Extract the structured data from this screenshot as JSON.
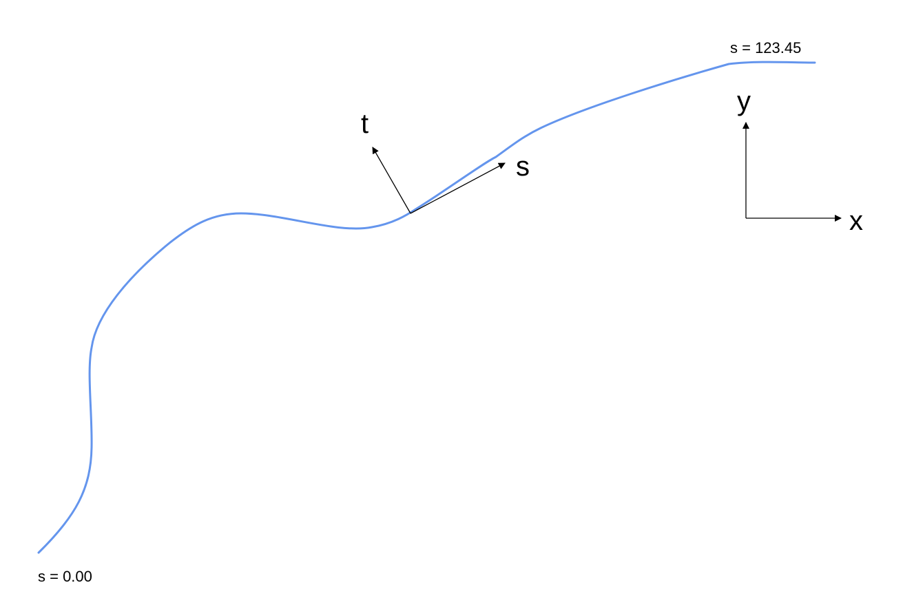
{
  "diagram": {
    "title_hidden": null,
    "curve": {
      "color": "#6495ED",
      "start_label": "s = 0.00",
      "end_label": "s = 123.45"
    },
    "local_frame": {
      "tangent_axis_label": "s",
      "normal_axis_label": "t",
      "color": "#000000"
    },
    "global_axes": {
      "x_label": "x",
      "y_label": "y",
      "color": "#000000"
    }
  }
}
